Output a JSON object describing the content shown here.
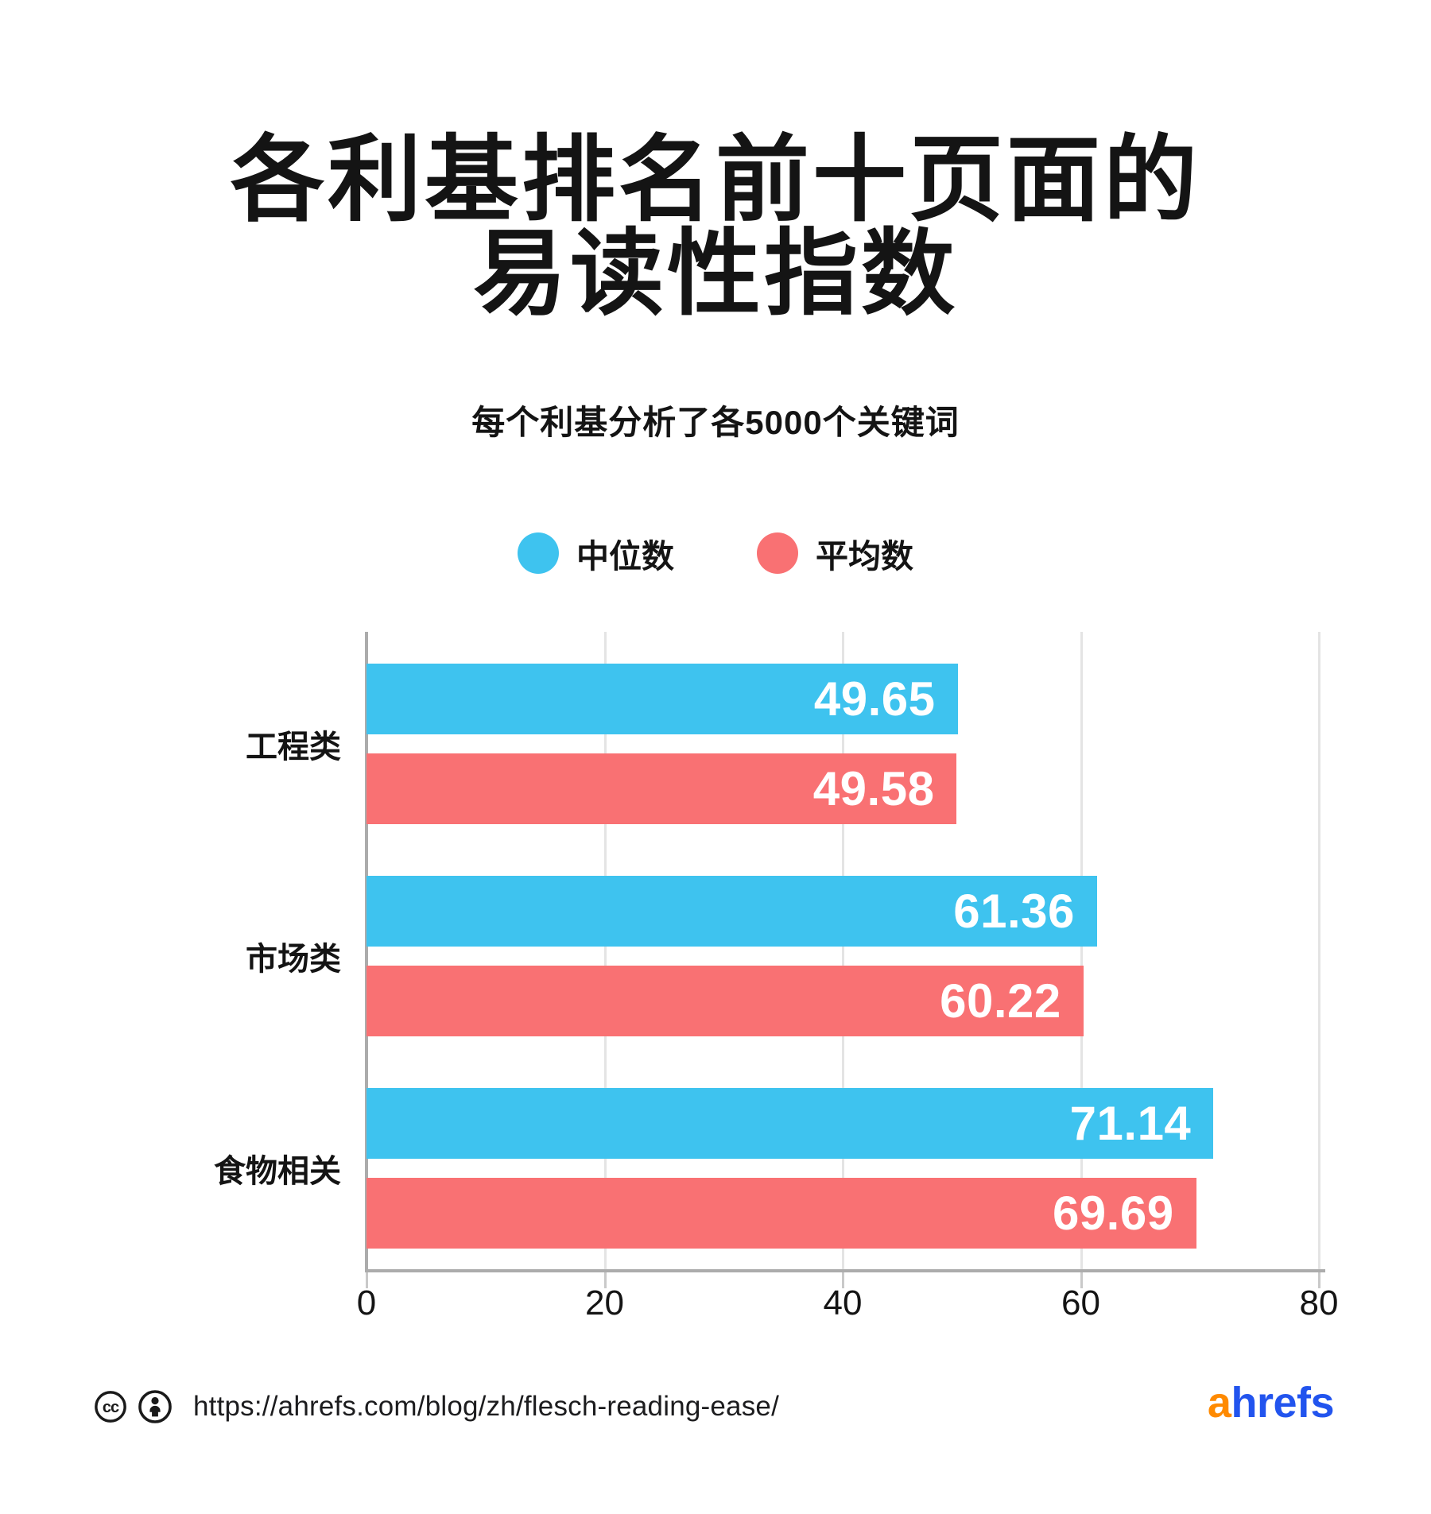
{
  "title": {
    "line1": "各利基排名前十页面的",
    "line2": "易读性指数"
  },
  "subtitle": "每个利基分析了各5000个关键词",
  "legend": {
    "items": [
      {
        "label": "中位数",
        "key": "median",
        "color": "#3EC3EF"
      },
      {
        "label": "平均数",
        "key": "mean",
        "color": "#F97173"
      }
    ]
  },
  "chart_data": {
    "type": "bar",
    "orientation": "horizontal",
    "title": "各利基排名前十页面的易读性指数",
    "subtitle": "每个利基分析了各5000个关键词",
    "categories": [
      "工程类",
      "市场类",
      "食物相关"
    ],
    "series": [
      {
        "name": "中位数",
        "key": "median",
        "color": "#3EC3EF",
        "values": [
          49.65,
          61.36,
          71.14
        ]
      },
      {
        "name": "平均数",
        "key": "mean",
        "color": "#F97173",
        "values": [
          49.58,
          60.22,
          69.69
        ]
      }
    ],
    "xlim": [
      0,
      80
    ],
    "x_ticks": [
      0,
      20,
      40,
      60,
      80
    ],
    "value_decimals": 2,
    "grid": true,
    "legend_position": "top",
    "bar_value_labels": "inside-right"
  },
  "footer": {
    "license_icons": [
      "cc-icon",
      "attribution-icon"
    ],
    "url": "https://ahrefs.com/blog/zh/flesch-reading-ease/",
    "logo": {
      "first": "a",
      "rest": "hrefs",
      "first_color": "#FF8A00",
      "rest_color": "#2254EE"
    }
  },
  "colors": {
    "background": "#FFFFFF",
    "text": "#141414",
    "bar_value_text": "#FFFFFF",
    "gridline": "#E4E4E4",
    "axis": "#ACACAC",
    "tick": "#C9C9C9"
  }
}
